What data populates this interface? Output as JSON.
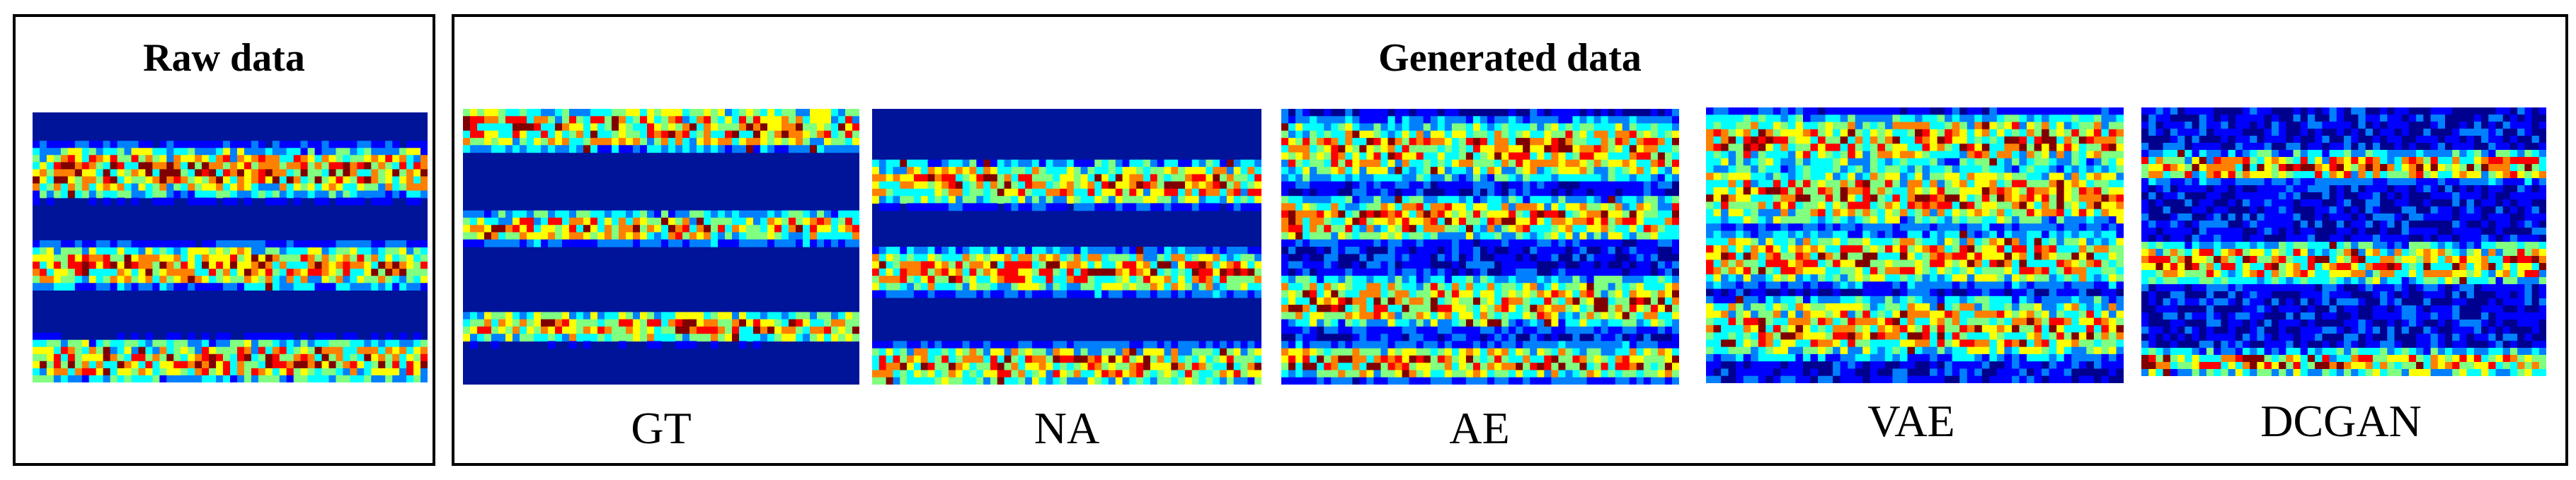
{
  "raw_panel": {
    "title": "Raw data"
  },
  "generated_panel": {
    "title": "Generated data",
    "labels": [
      "GT",
      "NA",
      "AE",
      "VAE",
      "DCGAN"
    ]
  },
  "colormap": [
    "#00008f",
    "#0000ff",
    "#0080ff",
    "#00ffff",
    "#80ff80",
    "#ffff00",
    "#ff8000",
    "#ff0000",
    "#800000"
  ]
}
